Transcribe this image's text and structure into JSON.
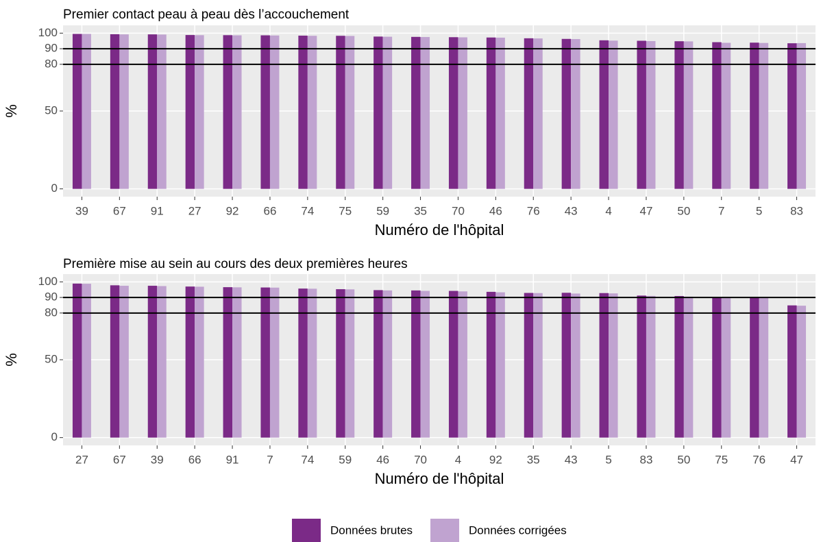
{
  "chart_data": [
    {
      "type": "bar",
      "title": "Premier contact peau à peau dès l’accouchement",
      "x_label": "Numéro de l'hôpital",
      "y_label": "%",
      "categories": [
        "39",
        "67",
        "91",
        "27",
        "92",
        "66",
        "74",
        "75",
        "59",
        "35",
        "70",
        "46",
        "76",
        "43",
        "4",
        "47",
        "50",
        "7",
        "5",
        "83"
      ],
      "series": [
        {
          "name": "Données brutes",
          "color": "#7b2a87",
          "values": [
            99.5,
            99.3,
            99.2,
            98.8,
            98.7,
            98.6,
            98.4,
            98.3,
            97.8,
            97.6,
            97.4,
            97.2,
            96.7,
            96.3,
            95.4,
            95.1,
            94.8,
            94.2,
            93.9,
            93.5
          ]
        },
        {
          "name": "Données corrigées",
          "color": "#c0a3d0",
          "values": [
            99.5,
            99.2,
            99.1,
            98.7,
            98.6,
            98.5,
            98.3,
            98.2,
            97.7,
            97.5,
            97.3,
            97.1,
            96.6,
            96.2,
            95.2,
            94.9,
            94.7,
            93.8,
            93.7,
            93.6
          ]
        }
      ],
      "ylim": [
        -5,
        105
      ],
      "yticks": [
        0,
        50,
        80,
        90,
        100
      ],
      "reference_lines": [
        80,
        90
      ],
      "grid": true,
      "legend": "bottom"
    },
    {
      "type": "bar",
      "title": "Première mise au sein au cours des deux premières heures",
      "x_label": "Numéro de l'hôpital",
      "y_label": "%",
      "categories": [
        "27",
        "67",
        "39",
        "66",
        "91",
        "7",
        "74",
        "59",
        "46",
        "70",
        "4",
        "92",
        "35",
        "43",
        "5",
        "83",
        "50",
        "75",
        "76",
        "47"
      ],
      "series": [
        {
          "name": "Données brutes",
          "color": "#7b2a87",
          "values": [
            98.9,
            97.8,
            97.5,
            97.0,
            96.6,
            96.4,
            95.7,
            95.3,
            94.7,
            94.5,
            94.2,
            93.6,
            92.9,
            93.0,
            92.8,
            91.2,
            90.9,
            90.0,
            90.2,
            84.9
          ]
        },
        {
          "name": "Données corrigées",
          "color": "#c0a3d0",
          "values": [
            98.8,
            97.5,
            97.3,
            96.9,
            96.5,
            96.3,
            95.6,
            95.2,
            94.5,
            94.2,
            93.9,
            93.3,
            92.8,
            92.5,
            92.6,
            91.0,
            90.5,
            89.9,
            90.0,
            84.7
          ]
        }
      ],
      "ylim": [
        -5,
        105
      ],
      "yticks": [
        0,
        50,
        80,
        90,
        100
      ],
      "reference_lines": [
        80,
        90
      ],
      "grid": true
    }
  ]
}
